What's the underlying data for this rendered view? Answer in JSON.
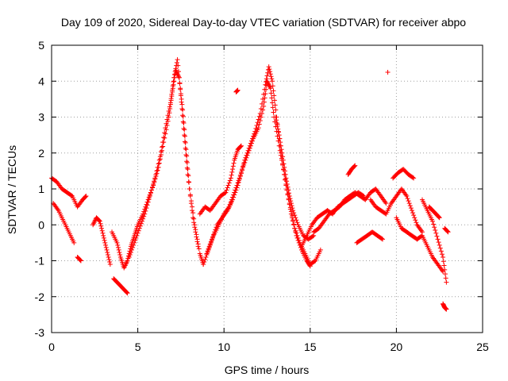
{
  "chart_data": {
    "type": "scatter",
    "title": "Day 109 of 2020, Sidereal Day-to-day VTEC variation (SDTVAR) for receiver abpo",
    "xlabel": "GPS time / hours",
    "ylabel": "SDTVAR / TECUs",
    "xlim": [
      0,
      25
    ],
    "ylim": [
      -3,
      5
    ],
    "xticks": [
      0,
      5,
      10,
      15,
      20,
      25
    ],
    "yticks": [
      -3,
      -2,
      -1,
      0,
      1,
      2,
      3,
      4,
      5
    ],
    "grid": true,
    "marker": "+",
    "color": "#ff0000",
    "series": [
      {
        "name": "s1",
        "x": [
          0.0,
          0.3,
          0.6,
          0.9,
          1.2,
          1.5,
          1.8,
          2.0
        ],
        "y": [
          1.3,
          1.2,
          1.0,
          0.9,
          0.8,
          0.5,
          0.7,
          0.8
        ]
      },
      {
        "name": "s2",
        "x": [
          0.1,
          0.4,
          0.7,
          1.0,
          1.3
        ],
        "y": [
          0.6,
          0.4,
          0.1,
          -0.2,
          -0.5
        ]
      },
      {
        "name": "s3",
        "x": [
          1.5,
          1.7
        ],
        "y": [
          -0.9,
          -1.0
        ]
      },
      {
        "name": "s4",
        "x": [
          2.4,
          2.6,
          2.8,
          3.0,
          3.2,
          3.4
        ],
        "y": [
          0.0,
          0.2,
          0.1,
          -0.3,
          -0.7,
          -1.1
        ]
      },
      {
        "name": "s5",
        "x": [
          3.6,
          3.8,
          4.0,
          4.2,
          4.4
        ],
        "y": [
          -1.5,
          -1.6,
          -1.7,
          -1.8,
          -1.9
        ]
      },
      {
        "name": "s6",
        "x": [
          3.5,
          3.8,
          4.0,
          4.2,
          4.4,
          4.6,
          4.8,
          5.0,
          5.3,
          5.6,
          5.9,
          6.2,
          6.5,
          6.8,
          7.0,
          7.2,
          7.4,
          7.6,
          7.8,
          8.0,
          8.3,
          8.6,
          8.8
        ],
        "y": [
          -0.2,
          -0.5,
          -0.9,
          -1.2,
          -1.0,
          -0.6,
          -0.3,
          0.0,
          0.3,
          0.7,
          1.1,
          1.6,
          2.3,
          3.0,
          3.7,
          4.3,
          4.1,
          3.2,
          2.1,
          1.0,
          0.0,
          -0.8,
          -1.1
        ]
      },
      {
        "name": "s7",
        "x": [
          4.5,
          4.8,
          5.1,
          5.4,
          5.7,
          6.0,
          6.3,
          6.6,
          6.9,
          7.1,
          7.3,
          7.5,
          7.7,
          7.9,
          8.2,
          8.5
        ],
        "y": [
          -0.9,
          -0.5,
          -0.1,
          0.3,
          0.8,
          1.3,
          1.9,
          2.7,
          3.4,
          4.1,
          4.6,
          3.6,
          2.5,
          1.4,
          0.2,
          -0.6
        ]
      },
      {
        "name": "s8",
        "x": [
          8.6,
          8.9,
          9.2,
          9.5,
          9.8,
          10.1,
          10.4,
          10.6,
          10.8,
          11.0
        ],
        "y": [
          0.3,
          0.5,
          0.4,
          0.6,
          0.8,
          0.9,
          1.3,
          1.8,
          2.1,
          2.2
        ]
      },
      {
        "name": "s9",
        "x": [
          8.8,
          9.1,
          9.4,
          9.7,
          10.0,
          10.3,
          10.6,
          10.9,
          11.2,
          11.5,
          11.8,
          12.1,
          12.4,
          12.6,
          12.8,
          13.0,
          13.3,
          13.6,
          13.9,
          14.2,
          14.5,
          14.8,
          15.0
        ],
        "y": [
          -1.1,
          -0.7,
          -0.3,
          0.0,
          0.3,
          0.5,
          0.9,
          1.3,
          1.8,
          2.2,
          2.6,
          3.1,
          3.9,
          4.4,
          4.0,
          3.2,
          2.0,
          1.1,
          0.3,
          -0.3,
          -0.7,
          -1.0,
          -1.15
        ]
      },
      {
        "name": "s10",
        "x": [
          9.0,
          9.3,
          9.6,
          9.9,
          10.2,
          10.5,
          10.8,
          11.1,
          11.4,
          11.7,
          12.0,
          12.3,
          12.5,
          12.7,
          12.9,
          13.2,
          13.5,
          13.8,
          14.1,
          14.4,
          14.7,
          15.0,
          15.3,
          15.6
        ],
        "y": [
          -0.8,
          -0.4,
          0.0,
          0.2,
          0.4,
          0.7,
          1.1,
          1.6,
          2.0,
          2.4,
          2.7,
          3.3,
          4.0,
          3.8,
          3.0,
          2.2,
          1.4,
          0.6,
          -0.1,
          -0.5,
          -0.8,
          -1.1,
          -1.0,
          -0.7
        ]
      },
      {
        "name": "s11",
        "x": [
          10.7,
          10.8
        ],
        "y": [
          3.7,
          3.75
        ]
      },
      {
        "name": "s12",
        "x": [
          13.0,
          13.2,
          13.4,
          13.6,
          13.8,
          14.0,
          14.3,
          14.6,
          14.9,
          15.2
        ],
        "y": [
          3.0,
          2.5,
          1.9,
          1.3,
          0.8,
          0.4,
          0.0,
          -0.3,
          -0.4,
          -0.3
        ]
      },
      {
        "name": "s13",
        "x": [
          14.5,
          14.8,
          15.1,
          15.4,
          15.7,
          16.0,
          16.3,
          16.6,
          16.9,
          17.2,
          17.5,
          17.8,
          18.1
        ],
        "y": [
          -0.6,
          -0.3,
          0.0,
          0.2,
          0.3,
          0.4,
          0.3,
          0.5,
          0.6,
          0.7,
          0.8,
          0.9,
          0.8
        ]
      },
      {
        "name": "s14",
        "x": [
          15.2,
          15.5,
          15.8,
          16.1,
          16.4,
          16.7,
          17.0,
          17.3,
          17.6,
          17.9,
          18.2,
          18.5,
          18.8,
          19.1,
          19.4
        ],
        "y": [
          -0.2,
          -0.1,
          0.1,
          0.3,
          0.4,
          0.5,
          0.7,
          0.8,
          0.9,
          0.8,
          0.7,
          0.9,
          1.0,
          0.8,
          0.6
        ]
      },
      {
        "name": "s15",
        "x": [
          17.2,
          17.4,
          17.6
        ],
        "y": [
          1.4,
          1.55,
          1.65
        ]
      },
      {
        "name": "s16",
        "x": [
          17.7,
          18.0,
          18.3,
          18.6,
          18.9,
          19.2
        ],
        "y": [
          -0.5,
          -0.4,
          -0.3,
          -0.2,
          -0.3,
          -0.4
        ]
      },
      {
        "name": "s17",
        "x": [
          18.5,
          18.8,
          19.1,
          19.4,
          19.7,
          20.0,
          20.3,
          20.6,
          20.9,
          21.2,
          21.5
        ],
        "y": [
          0.7,
          0.5,
          0.4,
          0.3,
          0.6,
          0.8,
          1.0,
          0.8,
          0.4,
          0.0,
          -0.2
        ]
      },
      {
        "name": "s18",
        "x": [
          19.5
        ],
        "y": [
          4.25
        ]
      },
      {
        "name": "s19",
        "x": [
          19.8,
          20.1,
          20.4,
          20.7,
          21.0
        ],
        "y": [
          1.3,
          1.45,
          1.55,
          1.4,
          1.3
        ]
      },
      {
        "name": "s20",
        "x": [
          20.0,
          20.3,
          20.6,
          20.9,
          21.2,
          21.5,
          21.8,
          22.1,
          22.4,
          22.7
        ],
        "y": [
          0.2,
          -0.1,
          -0.2,
          -0.3,
          -0.4,
          -0.3,
          -0.6,
          -0.9,
          -1.1,
          -1.3
        ]
      },
      {
        "name": "s21",
        "x": [
          21.5,
          21.8,
          22.1,
          22.4,
          22.7,
          22.9
        ],
        "y": [
          0.7,
          0.4,
          0.1,
          -0.4,
          -0.9,
          -1.6
        ]
      },
      {
        "name": "s22",
        "x": [
          21.9,
          22.1,
          22.3,
          22.5
        ],
        "y": [
          0.5,
          0.4,
          0.3,
          0.2
        ]
      },
      {
        "name": "s23",
        "x": [
          22.7,
          22.8,
          22.9
        ],
        "y": [
          -2.2,
          -2.3,
          -2.35
        ]
      },
      {
        "name": "s24",
        "x": [
          22.8,
          23.0
        ],
        "y": [
          -0.1,
          -0.2
        ]
      }
    ]
  }
}
